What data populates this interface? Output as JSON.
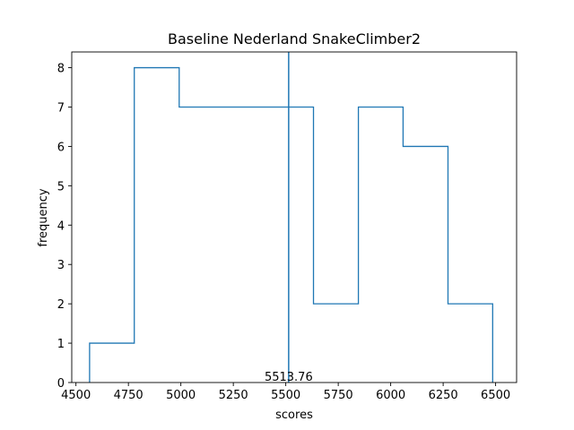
{
  "chart_data": {
    "type": "step",
    "title": "Baseline Nederland SnakeClimber2",
    "xlabel": "scores",
    "ylabel": "frequency",
    "xlim": [
      4480,
      6600
    ],
    "ylim": [
      0,
      8.4
    ],
    "xticks": [
      4500,
      4750,
      5000,
      5250,
      5500,
      5750,
      6000,
      6250,
      6500
    ],
    "yticks": [
      0,
      1,
      2,
      3,
      4,
      5,
      6,
      7,
      8
    ],
    "bin_edges": [
      4565,
      4778,
      4992,
      5205,
      5419,
      5632,
      5846,
      6059,
      6273,
      6486
    ],
    "counts": [
      1,
      8,
      7,
      7,
      7,
      2,
      7,
      6,
      2
    ],
    "mean_line": {
      "x": 5513.76,
      "label": "5513.76"
    },
    "grid": false,
    "colors": {
      "series": "#1f77b4",
      "axis": "#000000"
    }
  }
}
